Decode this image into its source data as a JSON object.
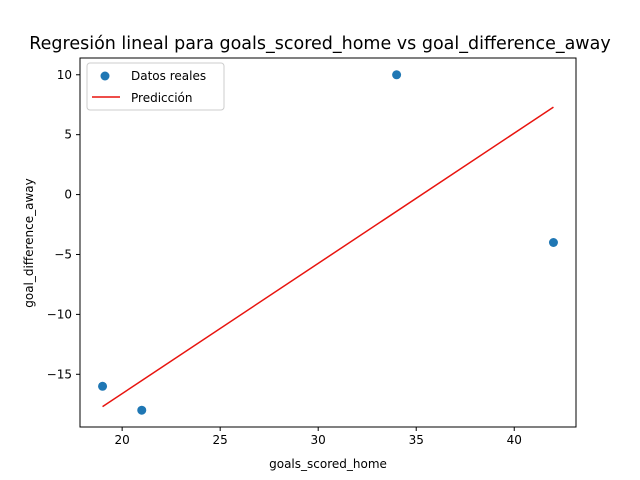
{
  "chart_data": {
    "type": "scatter",
    "title": "Regresión lineal para goals_scored_home vs goal_difference_away",
    "xlabel": "goals_scored_home",
    "ylabel": "goal_difference_away",
    "xlim": [
      17.85,
      43.15
    ],
    "ylim": [
      -19.4,
      11.4
    ],
    "xticks": [
      20,
      25,
      30,
      35,
      40
    ],
    "yticks": [
      -15,
      -10,
      -5,
      0,
      5,
      10
    ],
    "grid": false,
    "legend_position": "upper-left",
    "series": [
      {
        "name": "Datos reales",
        "kind": "scatter",
        "color": "#1f77b4",
        "points": [
          {
            "x": 19,
            "y": -16
          },
          {
            "x": 21,
            "y": -18
          },
          {
            "x": 34,
            "y": 10
          },
          {
            "x": 42,
            "y": -4
          }
        ]
      },
      {
        "name": "Predicción",
        "kind": "line",
        "color": "#e8140f",
        "points": [
          {
            "x": 19,
            "y": -17.7
          },
          {
            "x": 42,
            "y": 7.3
          }
        ]
      }
    ]
  }
}
